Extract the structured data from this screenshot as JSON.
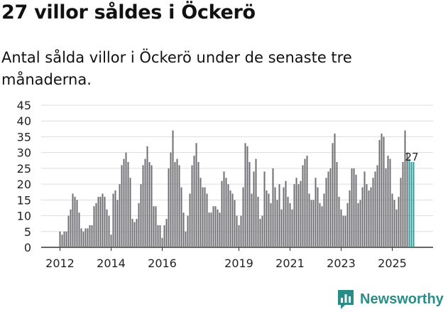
{
  "header": {
    "title": "27 villor såldes i Öckerö",
    "subtitle": "Antal sålda villor i Öckerö under de senaste tre månaderna."
  },
  "brand": {
    "name": "Newsworthy",
    "icon": "bar-chart-speech-bubble-icon",
    "color": "#2a8c89"
  },
  "chart_data": {
    "type": "bar",
    "title": "27 villor såldes i Öckerö",
    "xlabel": "",
    "ylabel": "",
    "ylim": [
      0,
      45
    ],
    "yticks": [
      0,
      5,
      10,
      15,
      20,
      25,
      30,
      35,
      40,
      45
    ],
    "xticks": [
      "2012",
      "2014",
      "2016",
      "2019",
      "2021",
      "2023",
      "2025"
    ],
    "x_start": "2012-01",
    "x_end": "2025-08",
    "grid": true,
    "bar_color": "#6e6e73",
    "highlight_color": "#2a9d9a",
    "highlight_last": 3,
    "annotation": {
      "text": "27",
      "value": 27,
      "target": "last"
    },
    "values": [
      5,
      4,
      5,
      5,
      10,
      12,
      17,
      16,
      15,
      11,
      6,
      5,
      6,
      6,
      7,
      7,
      13,
      14,
      16,
      16,
      17,
      16,
      12,
      10,
      4,
      17,
      18,
      15,
      20,
      26,
      28,
      30,
      27,
      22,
      9,
      8,
      9,
      14,
      20,
      26,
      28,
      32,
      27,
      26,
      13,
      13,
      7,
      7,
      3,
      7,
      9,
      25,
      30,
      37,
      27,
      28,
      26,
      19,
      11,
      5,
      10,
      17,
      26,
      29,
      33,
      27,
      22,
      19,
      19,
      17,
      11,
      11,
      13,
      13,
      12,
      11,
      21,
      24,
      22,
      20,
      18,
      17,
      15,
      10,
      7,
      10,
      19,
      33,
      32,
      27,
      17,
      24,
      28,
      16,
      9,
      10,
      24,
      18,
      17,
      14,
      25,
      19,
      15,
      20,
      12,
      19,
      21,
      16,
      14,
      12,
      20,
      22,
      20,
      21,
      26,
      28,
      29,
      17,
      15,
      15,
      22,
      19,
      14,
      13,
      17,
      22,
      24,
      25,
      33,
      36,
      27,
      16,
      12,
      10,
      10,
      14,
      18,
      25,
      25,
      23,
      14,
      15,
      19,
      24,
      20,
      18,
      19,
      22,
      24,
      26,
      34,
      36,
      35,
      25,
      29,
      28,
      17,
      15,
      12,
      16,
      22,
      27,
      37,
      30,
      28,
      27,
      27
    ]
  }
}
